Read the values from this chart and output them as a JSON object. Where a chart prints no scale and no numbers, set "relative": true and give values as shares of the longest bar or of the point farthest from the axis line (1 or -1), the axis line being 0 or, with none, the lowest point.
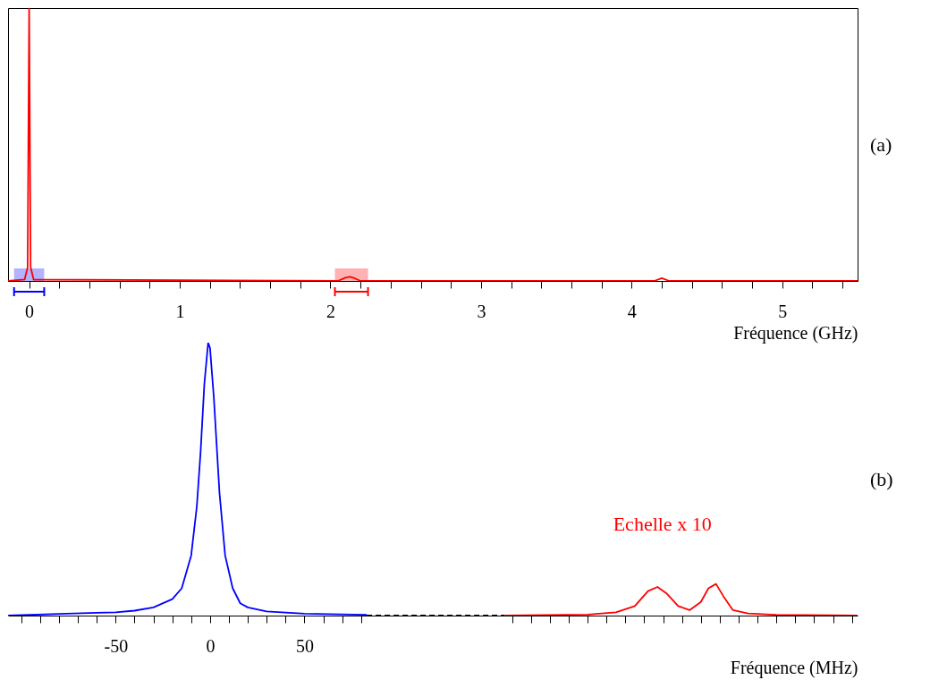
{
  "chart_data": [
    {
      "type": "line",
      "relative": true,
      "xlabel": "Fréquence (GHz)",
      "xlim": [
        -0.14,
        5.5
      ],
      "xticks": [
        0,
        {
          "value": 0.2,
          "label": null
        },
        {
          "value": 0.4,
          "label": null
        },
        {
          "value": 0.6,
          "label": null
        },
        {
          "value": 0.8,
          "label": null
        },
        1,
        {
          "value": 1.2,
          "label": null
        },
        {
          "value": 1.4,
          "label": null
        },
        {
          "value": 1.6,
          "label": null
        },
        {
          "value": 1.8,
          "label": null
        },
        2,
        {
          "value": 2.2,
          "label": null
        },
        {
          "value": 2.4,
          "label": null
        },
        {
          "value": 2.6,
          "label": null
        },
        {
          "value": 2.8,
          "label": null
        },
        3,
        {
          "value": 3.2,
          "label": null
        },
        {
          "value": 3.4,
          "label": null
        },
        {
          "value": 3.6,
          "label": null
        },
        {
          "value": 3.8,
          "label": null
        },
        4,
        {
          "value": 4.2,
          "label": null
        },
        {
          "value": 4.4,
          "label": null
        },
        {
          "value": 4.6,
          "label": null
        },
        {
          "value": 4.8,
          "label": null
        },
        5,
        {
          "value": 5.2,
          "label": null
        },
        {
          "value": 5.4,
          "label": null
        }
      ],
      "x": [
        -0.14,
        -0.03,
        -0.01,
        0,
        0.01,
        0.03,
        2.05,
        2.1,
        2.13,
        2.16,
        2.2,
        4.15,
        4.2,
        4.25,
        5.5
      ],
      "series": [
        {
          "color": "#ff0000",
          "values": [
            0,
            0.005,
            0.05,
            1,
            0.05,
            0.005,
            0,
            0.012,
            0.015,
            0.01,
            0,
            0,
            0.01,
            0,
            0
          ]
        }
      ],
      "bands": [
        {
          "axis": "x",
          "from": -0.1,
          "to": 0.1,
          "color": "#0000ff"
        },
        {
          "axis": "x",
          "from": 2.03,
          "to": 2.25,
          "color": "#ff0000"
        }
      ],
      "annotations": [
        "(a)"
      ],
      "grid": false
    },
    {
      "type": "line",
      "relative": true,
      "xlabel": "Fréquence (MHz)",
      "xlim": [
        -107,
        343
      ],
      "xticks": [
        {
          "value": -100,
          "label": null
        },
        {
          "value": -90,
          "label": null
        },
        {
          "value": -80,
          "label": null
        },
        {
          "value": -70,
          "label": null
        },
        {
          "value": -60,
          "label": null
        },
        -50,
        {
          "value": -40,
          "label": null
        },
        {
          "value": -30,
          "label": null
        },
        {
          "value": -20,
          "label": null
        },
        {
          "value": -10,
          "label": null
        },
        0,
        {
          "value": 10,
          "label": null
        },
        {
          "value": 20,
          "label": null
        },
        {
          "value": 30,
          "label": null
        },
        {
          "value": 40,
          "label": null
        },
        50,
        {
          "value": 60,
          "label": null
        },
        {
          "value": 70,
          "label": null
        },
        {
          "value": 80,
          "label": null
        },
        {
          "value": 160,
          "label": null
        },
        {
          "value": 170,
          "label": null
        },
        {
          "value": 180,
          "label": null
        },
        {
          "value": 190,
          "label": null
        },
        {
          "value": 200,
          "label": null
        },
        {
          "value": 210,
          "label": null
        },
        {
          "value": 220,
          "label": null
        },
        {
          "value": 230,
          "label": null
        },
        {
          "value": 240,
          "label": null
        },
        {
          "value": 250,
          "label": null
        },
        {
          "value": 260,
          "label": null
        },
        {
          "value": 270,
          "label": null
        },
        {
          "value": 280,
          "label": null
        },
        {
          "value": 290,
          "label": null
        },
        {
          "value": 300,
          "label": null
        },
        {
          "value": 310,
          "label": null
        },
        {
          "value": 320,
          "label": null
        },
        {
          "value": 330,
          "label": null
        },
        {
          "value": 340,
          "label": null
        }
      ],
      "series": [
        {
          "color": "#0000ff",
          "x": [
            -107,
            -80,
            -60,
            -50,
            -40,
            -30,
            -20,
            -15,
            -10,
            -7,
            -5,
            -3,
            -1,
            0,
            2,
            5,
            8,
            12,
            16,
            20,
            30,
            50,
            83
          ],
          "values": [
            0,
            0.006,
            0.01,
            0.012,
            0.018,
            0.03,
            0.06,
            0.1,
            0.22,
            0.4,
            0.6,
            0.85,
            1,
            0.98,
            0.8,
            0.45,
            0.22,
            0.1,
            0.045,
            0.03,
            0.015,
            0.007,
            0.003
          ]
        },
        {
          "color": "#000000",
          "line_style": "dashed",
          "x": [
            83,
            156
          ],
          "values": [
            0,
            0
          ]
        },
        {
          "color": "#ff0000",
          "x": [
            156,
            200,
            215,
            225,
            232,
            237,
            242,
            248,
            254,
            260,
            264,
            268,
            272,
            277,
            285,
            300,
            343
          ],
          "values": [
            0,
            0.004,
            0.012,
            0.035,
            0.09,
            0.105,
            0.08,
            0.035,
            0.02,
            0.05,
            0.1,
            0.116,
            0.07,
            0.02,
            0.008,
            0.003,
            0
          ]
        }
      ],
      "annotations": [
        "(b)",
        "Echelle x 10"
      ],
      "grid": false
    }
  ]
}
